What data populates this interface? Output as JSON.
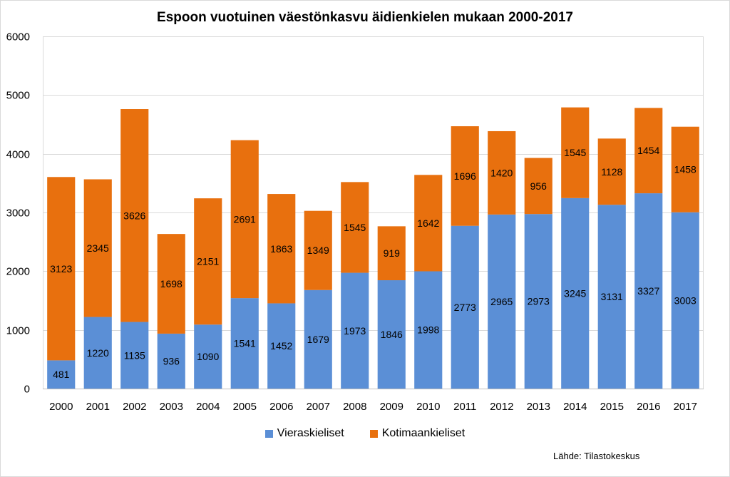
{
  "chart_data": {
    "type": "bar",
    "stacked": true,
    "title": "Espoon vuotuinen väestönkasvu äidienkielen mukaan 2000-2017",
    "xlabel": "",
    "ylabel": "",
    "ylim": [
      0,
      6000
    ],
    "yticks": [
      0,
      1000,
      2000,
      3000,
      4000,
      5000,
      6000
    ],
    "grid": true,
    "legend_position": "bottom",
    "categories": [
      "2000",
      "2001",
      "2002",
      "2003",
      "2004",
      "2005",
      "2006",
      "2007",
      "2008",
      "2009",
      "2010",
      "2011",
      "2012",
      "2013",
      "2014",
      "2015",
      "2016",
      "2017"
    ],
    "series": [
      {
        "name": "Vieraskieliset",
        "color": "#5b8fd6",
        "values": [
          481,
          1220,
          1135,
          936,
          1090,
          1541,
          1452,
          1679,
          1973,
          1846,
          1998,
          2773,
          2965,
          2973,
          3245,
          3131,
          3327,
          3003
        ]
      },
      {
        "name": "Kotimaankieliset",
        "color": "#e8700e",
        "values": [
          3123,
          2345,
          3626,
          1698,
          2151,
          2691,
          1863,
          1349,
          1545,
          919,
          1642,
          1696,
          1420,
          956,
          1545,
          1128,
          1454,
          1458
        ]
      }
    ],
    "source": "Lähde: Tilastokeskus"
  }
}
